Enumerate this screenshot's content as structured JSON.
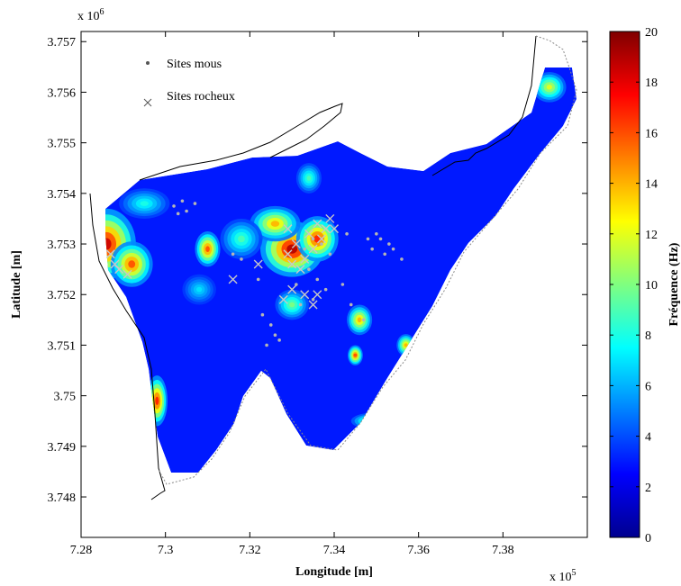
{
  "chart_data": {
    "type": "heatmap",
    "title": "",
    "xlabel": "Longitude [m]",
    "ylabel": "Latitude [m]",
    "x_multiplier": "x 10",
    "x_multiplier_exp": "5",
    "y_multiplier": "x 10",
    "y_multiplier_exp": "6",
    "xlim": [
      728000,
      740000
    ],
    "ylim": [
      3747200,
      3757200
    ],
    "x_ticks": [
      728000,
      730000,
      732000,
      734000,
      736000,
      738000
    ],
    "x_tick_labels": [
      "7.28",
      "7.3",
      "7.32",
      "7.34",
      "7.36",
      "7.38"
    ],
    "y_ticks": [
      3748000,
      3749000,
      3750000,
      3751000,
      3752000,
      3753000,
      3754000,
      3755000,
      3756000,
      3757000
    ],
    "y_tick_labels": [
      "3.748",
      "3.749",
      "3.75",
      "3.751",
      "3.752",
      "3.753",
      "3.754",
      "3.755",
      "3.756",
      "3.757"
    ],
    "grid": false,
    "legend_position": "top-left",
    "legend": [
      {
        "label": "Sites mous",
        "marker": "dot",
        "color": "#a8a8a8"
      },
      {
        "label": "Sites rocheux",
        "marker": "x",
        "color": "#8c8c8c"
      }
    ],
    "colorbar": {
      "label": "Fréquence (Hz)",
      "range": [
        0,
        20
      ],
      "ticks": [
        0,
        2,
        4,
        6,
        8,
        10,
        12,
        14,
        16,
        18,
        20
      ],
      "colormap": "jet"
    },
    "background_level_hz": 3,
    "hotspots": [
      {
        "x": 728600,
        "y": 3753000,
        "value": 18.5,
        "sx": 700,
        "sy": 700
      },
      {
        "x": 729200,
        "y": 3752600,
        "value": 16,
        "sx": 500,
        "sy": 450
      },
      {
        "x": 733000,
        "y": 3752900,
        "value": 19,
        "sx": 750,
        "sy": 550
      },
      {
        "x": 733600,
        "y": 3753100,
        "value": 17,
        "sx": 500,
        "sy": 450
      },
      {
        "x": 732600,
        "y": 3753400,
        "value": 14,
        "sx": 600,
        "sy": 350
      },
      {
        "x": 731000,
        "y": 3752900,
        "value": 16,
        "sx": 300,
        "sy": 350
      },
      {
        "x": 731800,
        "y": 3753100,
        "value": 9,
        "sx": 500,
        "sy": 400
      },
      {
        "x": 729800,
        "y": 3749900,
        "value": 17,
        "sx": 250,
        "sy": 500
      },
      {
        "x": 734600,
        "y": 3751500,
        "value": 14,
        "sx": 300,
        "sy": 300
      },
      {
        "x": 734500,
        "y": 3750800,
        "value": 16,
        "sx": 180,
        "sy": 200
      },
      {
        "x": 735700,
        "y": 3751000,
        "value": 14,
        "sx": 220,
        "sy": 220
      },
      {
        "x": 734900,
        "y": 3749500,
        "value": 11,
        "sx": 500,
        "sy": 160
      },
      {
        "x": 739100,
        "y": 3756100,
        "value": 12,
        "sx": 400,
        "sy": 300
      },
      {
        "x": 733400,
        "y": 3754300,
        "value": 9,
        "sx": 300,
        "sy": 300
      },
      {
        "x": 733000,
        "y": 3751800,
        "value": 10,
        "sx": 400,
        "sy": 300
      },
      {
        "x": 730800,
        "y": 3752100,
        "value": 7,
        "sx": 400,
        "sy": 300
      },
      {
        "x": 729500,
        "y": 3753800,
        "value": 8,
        "sx": 600,
        "sy": 300
      }
    ],
    "sites_mous": [
      [
        730200,
        3753750
      ],
      [
        730400,
        3753850
      ],
      [
        730500,
        3753650
      ],
      [
        730700,
        3753800
      ],
      [
        730300,
        3753600
      ],
      [
        733300,
        3752900
      ],
      [
        733500,
        3753100
      ],
      [
        733700,
        3753000
      ],
      [
        733900,
        3752800
      ],
      [
        733400,
        3752500
      ],
      [
        733100,
        3752200
      ],
      [
        733600,
        3752300
      ],
      [
        733800,
        3752100
      ],
      [
        733200,
        3751800
      ],
      [
        733500,
        3751900
      ],
      [
        734200,
        3752200
      ],
      [
        734700,
        3751500
      ],
      [
        734400,
        3751800
      ],
      [
        734800,
        3753100
      ],
      [
        734900,
        3752900
      ],
      [
        735000,
        3753200
      ],
      [
        735200,
        3752800
      ],
      [
        735400,
        3752900
      ],
      [
        735300,
        3753000
      ],
      [
        735600,
        3752700
      ],
      [
        732300,
        3751600
      ],
      [
        732500,
        3751400
      ],
      [
        732600,
        3751200
      ],
      [
        732400,
        3751000
      ],
      [
        732700,
        3751100
      ],
      [
        732200,
        3752300
      ],
      [
        731800,
        3752700
      ],
      [
        731600,
        3752800
      ],
      [
        735100,
        3753100
      ],
      [
        734300,
        3753200
      ]
    ],
    "sites_rocheux": [
      [
        728800,
        3752600
      ],
      [
        728900,
        3752500
      ],
      [
        729100,
        3752400
      ],
      [
        728700,
        3752800
      ],
      [
        732900,
        3753300
      ],
      [
        733100,
        3753000
      ],
      [
        733300,
        3752700
      ],
      [
        733000,
        3752600
      ],
      [
        733400,
        3753200
      ],
      [
        733600,
        3753400
      ],
      [
        733800,
        3753300
      ],
      [
        733700,
        3753100
      ],
      [
        733500,
        3752900
      ],
      [
        733900,
        3753500
      ],
      [
        734000,
        3753300
      ],
      [
        733200,
        3752500
      ],
      [
        733000,
        3752100
      ],
      [
        732800,
        3751900
      ],
      [
        733300,
        3752000
      ],
      [
        733600,
        3752000
      ],
      [
        733500,
        3751800
      ],
      [
        732200,
        3752600
      ],
      [
        731600,
        3752300
      ],
      [
        732900,
        3752800
      ]
    ]
  }
}
